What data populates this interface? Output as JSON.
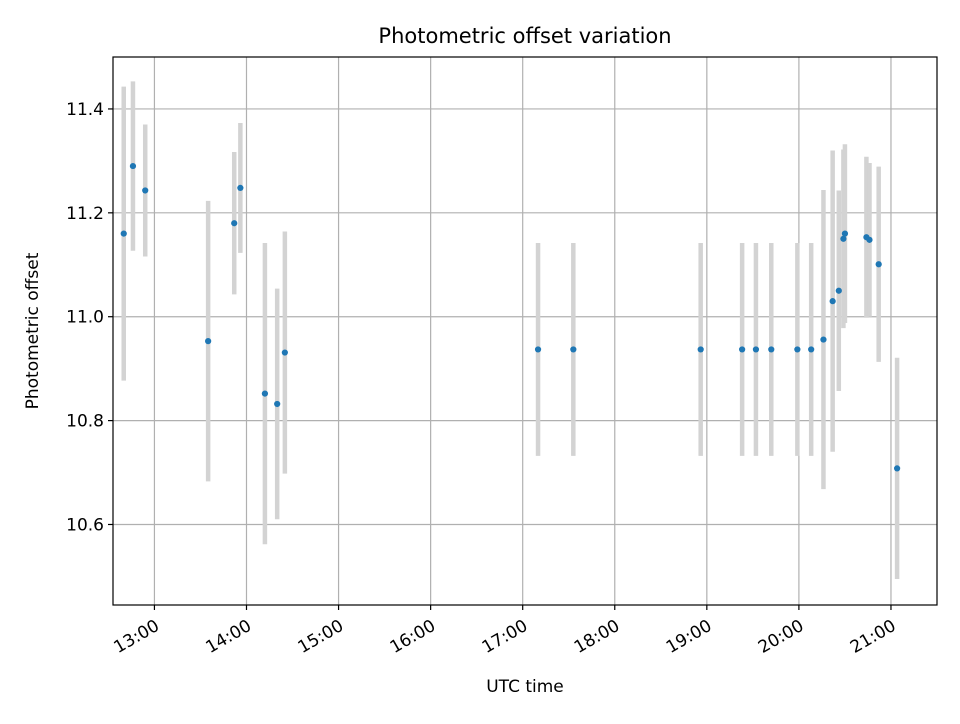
{
  "chart_data": {
    "type": "scatter",
    "title": "Photometric offset variation",
    "xlabel": "UTC time",
    "ylabel": "Photometric offset",
    "x_ticks": [
      "13:00",
      "14:00",
      "15:00",
      "16:00",
      "17:00",
      "18:00",
      "19:00",
      "20:00",
      "21:00"
    ],
    "y_ticks": [
      "10.6",
      "10.8",
      "11.0",
      "11.2",
      "11.4"
    ],
    "xlim": [
      "12:33",
      "21:30"
    ],
    "ylim": [
      10.445,
      11.5
    ],
    "grid": true,
    "series": [
      {
        "marker_color": "#1f77b4",
        "errorbar_color": "#d3d3d3",
        "points": [
          {
            "x": "12:40",
            "y": 11.16,
            "err": 0.283
          },
          {
            "x": "12:46",
            "y": 11.29,
            "err": 0.163
          },
          {
            "x": "12:54",
            "y": 11.243,
            "err": 0.127
          },
          {
            "x": "13:35",
            "y": 10.953,
            "err": 0.27
          },
          {
            "x": "13:52",
            "y": 11.18,
            "err": 0.137
          },
          {
            "x": "13:56",
            "y": 11.248,
            "err": 0.125
          },
          {
            "x": "14:12",
            "y": 10.852,
            "err": 0.29
          },
          {
            "x": "14:20",
            "y": 10.832,
            "err": 0.222
          },
          {
            "x": "14:25",
            "y": 10.931,
            "err": 0.233
          },
          {
            "x": "17:10",
            "y": 10.937,
            "err": 0.205
          },
          {
            "x": "17:33",
            "y": 10.937,
            "err": 0.205
          },
          {
            "x": "18:56",
            "y": 10.937,
            "err": 0.205
          },
          {
            "x": "19:23",
            "y": 10.937,
            "err": 0.205
          },
          {
            "x": "19:32",
            "y": 10.937,
            "err": 0.205
          },
          {
            "x": "19:42",
            "y": 10.937,
            "err": 0.205
          },
          {
            "x": "19:59",
            "y": 10.937,
            "err": 0.205
          },
          {
            "x": "20:08",
            "y": 10.937,
            "err": 0.205
          },
          {
            "x": "20:16",
            "y": 10.956,
            "err": 0.288
          },
          {
            "x": "20:22",
            "y": 11.03,
            "err": 0.29
          },
          {
            "x": "20:26",
            "y": 11.05,
            "err": 0.193
          },
          {
            "x": "20:29",
            "y": 11.15,
            "err": 0.172
          },
          {
            "x": "20:30",
            "y": 11.16,
            "err": 0.172
          },
          {
            "x": "20:44",
            "y": 11.153,
            "err": 0.155
          },
          {
            "x": "20:46",
            "y": 11.148,
            "err": 0.148
          },
          {
            "x": "20:52",
            "y": 11.101,
            "err": 0.188
          },
          {
            "x": "21:04",
            "y": 10.708,
            "err": 0.213
          }
        ]
      }
    ]
  }
}
